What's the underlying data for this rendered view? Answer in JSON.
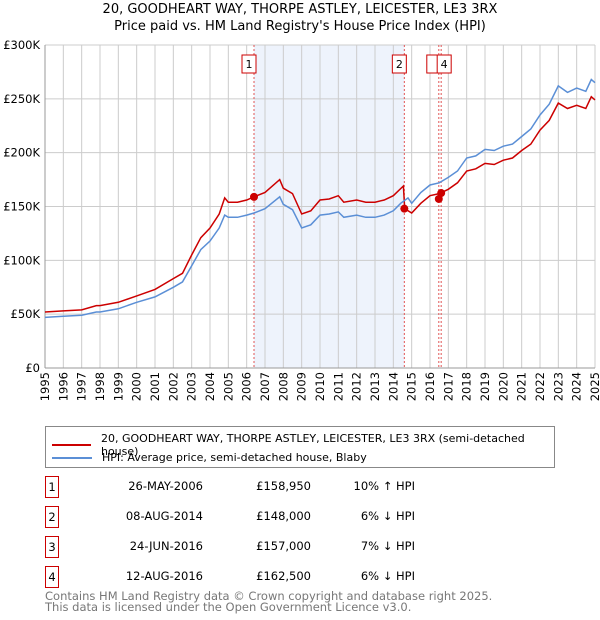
{
  "title": "20, GOODHEART WAY, THORPE ASTLEY, LEICESTER, LE3 3RX",
  "subtitle": "Price paid vs. HM Land Registry's House Price Index (HPI)",
  "colors": {
    "property": "#cc0000",
    "hpi": "#5b8fd6",
    "shade": "#eef3fc",
    "grid": "#cccccc"
  },
  "chart_data": {
    "type": "line",
    "title": "Price paid vs. HM Land Registry's House Price Index (HPI)",
    "xlim": [
      1995,
      2025
    ],
    "ylim": [
      0,
      300000
    ],
    "x_ticks": [
      "1995",
      "1996",
      "1997",
      "1998",
      "1999",
      "2000",
      "2001",
      "2002",
      "2003",
      "2004",
      "2005",
      "2006",
      "2007",
      "2008",
      "2009",
      "2010",
      "2011",
      "2012",
      "2013",
      "2014",
      "2015",
      "2016",
      "2017",
      "2018",
      "2019",
      "2020",
      "2021",
      "2022",
      "2023",
      "2024",
      "2025"
    ],
    "y_ticks": [
      {
        "v": 0,
        "label": "£0"
      },
      {
        "v": 50000,
        "label": "£50K"
      },
      {
        "v": 100000,
        "label": "£100K"
      },
      {
        "v": 150000,
        "label": "£150K"
      },
      {
        "v": 200000,
        "label": "£200K"
      },
      {
        "v": 250000,
        "label": "£250K"
      },
      {
        "v": 300000,
        "label": "£300K"
      }
    ],
    "grid": true,
    "shaded_range": [
      2006.4,
      2014.6
    ],
    "series": [
      {
        "name": "property",
        "x": [
          1995,
          1996,
          1997,
          1997.8,
          1998,
          1999,
          2000,
          2001,
          2002,
          2002.5,
          2003,
          2003.5,
          2004,
          2004.5,
          2004.8,
          2005,
          2005.5,
          2006,
          2006.4,
          2007,
          2007.8,
          2008,
          2008.5,
          2009,
          2009.5,
          2010,
          2010.5,
          2011,
          2011.3,
          2012,
          2012.5,
          2013,
          2013.5,
          2014,
          2014.55,
          2014.62,
          2015,
          2015.5,
          2016,
          2016.5,
          2017,
          2017.5,
          2018,
          2018.5,
          2019,
          2019.5,
          2020,
          2020.5,
          2021,
          2021.5,
          2022,
          2022.5,
          2023,
          2023.5,
          2024,
          2024.5,
          2024.8,
          2025
        ],
        "values": [
          52000,
          53000,
          54000,
          58000,
          58000,
          61000,
          67000,
          73000,
          83000,
          88000,
          105000,
          121000,
          130000,
          143000,
          158000,
          154000,
          154000,
          156000,
          159000,
          163000,
          175000,
          167000,
          162000,
          143000,
          146000,
          156000,
          157000,
          160000,
          154000,
          156000,
          154000,
          154000,
          156000,
          160000,
          169000,
          148000,
          144000,
          153000,
          160000,
          162000,
          166000,
          172000,
          183000,
          185000,
          190000,
          189000,
          193000,
          195000,
          202000,
          208000,
          221000,
          230000,
          246000,
          241000,
          244000,
          241000,
          252000,
          249000
        ]
      },
      {
        "name": "hpi",
        "x": [
          1995,
          1996,
          1997,
          1997.8,
          1998,
          1999,
          2000,
          2001,
          2002,
          2002.5,
          2003,
          2003.5,
          2004,
          2004.5,
          2004.8,
          2005,
          2005.5,
          2006,
          2006.4,
          2007,
          2007.8,
          2008,
          2008.5,
          2009,
          2009.5,
          2010,
          2010.5,
          2011,
          2011.3,
          2012,
          2012.5,
          2013,
          2013.5,
          2014,
          2014.4,
          2014.8,
          2015,
          2015.5,
          2016,
          2016.5,
          2017,
          2017.5,
          2018,
          2018.5,
          2019,
          2019.5,
          2020,
          2020.5,
          2021,
          2021.5,
          2022,
          2022.5,
          2023,
          2023.5,
          2024,
          2024.5,
          2024.8,
          2025
        ],
        "values": [
          47000,
          48000,
          49000,
          52000,
          52000,
          55000,
          61000,
          66000,
          75000,
          80000,
          95000,
          110000,
          118000,
          130000,
          142000,
          140000,
          140000,
          142000,
          144000,
          148000,
          159000,
          152000,
          147000,
          130000,
          133000,
          142000,
          143000,
          145000,
          140000,
          142000,
          140000,
          140000,
          142000,
          146000,
          153000,
          158000,
          153000,
          163000,
          170000,
          172000,
          177000,
          183000,
          195000,
          197000,
          203000,
          202000,
          206000,
          208000,
          215000,
          222000,
          235000,
          245000,
          262000,
          256000,
          260000,
          257000,
          268000,
          265000
        ]
      }
    ],
    "sales": [
      {
        "n": "1",
        "x": 2006.4,
        "price": 158950,
        "date": "26-MAY-2006",
        "price_label": "£158,950",
        "hpi": "10% ↑ HPI",
        "show_label": true
      },
      {
        "n": "2",
        "x": 2014.6,
        "price": 148000,
        "date": "08-AUG-2014",
        "price_label": "£148,000",
        "hpi": "6% ↓ HPI",
        "show_label": true
      },
      {
        "n": "3",
        "x": 2016.48,
        "price": 157000,
        "date": "24-JUN-2016",
        "price_label": "£157,000",
        "hpi": "7% ↓ HPI",
        "show_label": true
      },
      {
        "n": "4",
        "x": 2016.61,
        "price": 162500,
        "date": "12-AUG-2016",
        "price_label": "£162,500",
        "hpi": "6% ↓ HPI",
        "show_label": true
      }
    ]
  },
  "legend": {
    "property": "20, GOODHEART WAY, THORPE ASTLEY, LEICESTER, LE3 3RX (semi-detached house)",
    "hpi": "HPI: Average price, semi-detached house, Blaby"
  },
  "footer": {
    "line1": "Contains HM Land Registry data © Crown copyright and database right 2025.",
    "line2": "This data is licensed under the Open Government Licence v3.0."
  }
}
